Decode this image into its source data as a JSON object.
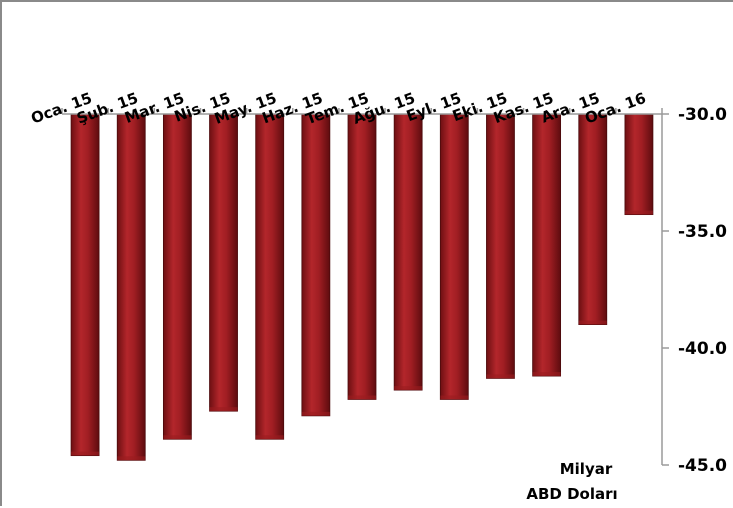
{
  "chart_data": {
    "type": "bar",
    "categories": [
      "Oca. 15",
      "Şub. 15",
      "Mar. 15",
      "Nis. 15",
      "May. 15",
      "Haz. 15",
      "Tem. 15",
      "Ağu. 15",
      "Eyl. 15",
      "Eki. 15",
      "Kas. 15",
      "Ara. 15",
      "Oca. 16"
    ],
    "values": [
      -44.6,
      -44.8,
      -43.9,
      -42.7,
      -43.9,
      -42.9,
      -42.2,
      -41.8,
      -42.2,
      -41.3,
      -41.2,
      -39.0,
      -34.3
    ],
    "y_axis": {
      "position": "right",
      "reversed": true,
      "ylim": [
        -30.0,
        -45.0
      ],
      "ticks": [
        "-30.0",
        "-35.0",
        "-40.0",
        "-45.0"
      ]
    },
    "x_axis_position": "top",
    "unit_label_lines": [
      "Milyar",
      "ABD Doları"
    ],
    "bar_color": "#9b1c20",
    "grid": false
  }
}
